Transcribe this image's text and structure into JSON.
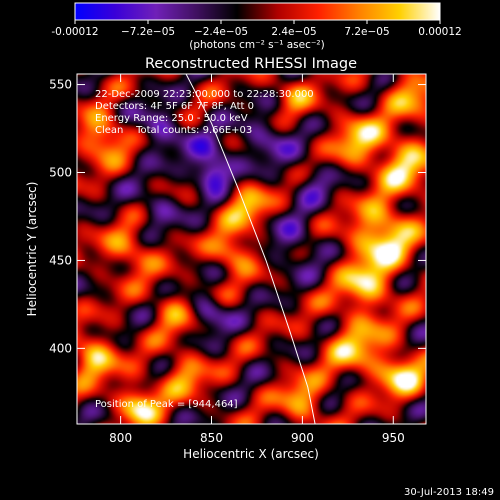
{
  "chart_data": {
    "type": "heatmap",
    "title": "Reconstructed RHESSI Image",
    "xlabel": "Heliocentric X (arcsec)",
    "ylabel": "Heliocentric Y (arcsec)",
    "xlim": [
      776,
      968
    ],
    "ylim": [
      357,
      556
    ],
    "x_ticks": [
      800,
      850,
      900,
      950
    ],
    "y_ticks": [
      400,
      450,
      500,
      550
    ],
    "colorbar": {
      "range": [
        -0.00012,
        0.00012
      ],
      "ticks": [
        {
          "value": -0.00012,
          "label": "-0.00012"
        },
        {
          "value": -7.2e-05,
          "label": "−7.2e−05"
        },
        {
          "value": -2.4e-05,
          "label": "−2.4e−05"
        },
        {
          "value": 2.4e-05,
          "label": "2.4e−05"
        },
        {
          "value": 7.2e-05,
          "label": "7.2e−05"
        },
        {
          "value": 0.00012,
          "label": "0.00012"
        }
      ],
      "units_label": "(photons cm⁻² s⁻¹ asec⁻²)",
      "colormap": [
        "#0000ff",
        "#3a00d8",
        "#7020b8",
        "#401060",
        "#000000",
        "#b00000",
        "#ff2000",
        "#ff8000",
        "#ffd000",
        "#ffffff"
      ]
    },
    "annotations": [
      "22-Dec-2009 22:23:00.000 to 22:28:30.000",
      "Detectors: 4F 5F 6F 7F 8F, Att 0",
      "Energy Range: 25.0 - 50.0 keV",
      "Clean    Total counts: 9.66E+03"
    ],
    "peak_label": "Position of Peak = [944,464]",
    "peak": [
      944,
      464
    ],
    "limb_curve": [
      [
        836,
        556
      ],
      [
        850,
        528
      ],
      [
        865,
        490
      ],
      [
        880,
        450
      ],
      [
        893,
        410
      ],
      [
        903,
        378
      ],
      [
        907,
        357
      ]
    ],
    "sources": [
      {
        "x": 944,
        "y": 464,
        "amp": 0.00012,
        "sigma": 12
      },
      {
        "x": 955,
        "y": 505,
        "amp": 9e-05,
        "sigma": 12
      },
      {
        "x": 930,
        "y": 520,
        "amp": 8e-05,
        "sigma": 10
      },
      {
        "x": 935,
        "y": 435,
        "amp": 9e-05,
        "sigma": 11
      },
      {
        "x": 930,
        "y": 400,
        "amp": 8e-05,
        "sigma": 12
      },
      {
        "x": 955,
        "y": 385,
        "amp": 0.0001,
        "sigma": 9
      },
      {
        "x": 960,
        "y": 545,
        "amp": 7e-05,
        "sigma": 10
      },
      {
        "x": 790,
        "y": 520,
        "amp": 0.0001,
        "sigma": 9
      },
      {
        "x": 785,
        "y": 395,
        "amp": 0.0001,
        "sigma": 9
      },
      {
        "x": 810,
        "y": 368,
        "amp": 0.00011,
        "sigma": 8
      },
      {
        "x": 805,
        "y": 455,
        "amp": 7e-05,
        "sigma": 10
      },
      {
        "x": 870,
        "y": 480,
        "amp": 8e-05,
        "sigma": 9
      },
      {
        "x": 862,
        "y": 455,
        "amp": 9e-05,
        "sigma": 8
      },
      {
        "x": 900,
        "y": 370,
        "amp": 8e-05,
        "sigma": 9
      },
      {
        "x": 830,
        "y": 420,
        "amp": 6e-05,
        "sigma": 9
      },
      {
        "x": 895,
        "y": 545,
        "amp": 6e-05,
        "sigma": 8
      },
      {
        "x": 835,
        "y": 385,
        "amp": 7e-05,
        "sigma": 9
      },
      {
        "x": 850,
        "y": 508,
        "amp": -7e-05,
        "sigma": 9
      },
      {
        "x": 850,
        "y": 498,
        "amp": -8e-05,
        "sigma": 6
      },
      {
        "x": 822,
        "y": 525,
        "amp": -7e-05,
        "sigma": 9
      },
      {
        "x": 848,
        "y": 420,
        "amp": -8e-05,
        "sigma": 7
      },
      {
        "x": 895,
        "y": 460,
        "amp": -6e-05,
        "sigma": 10
      },
      {
        "x": 880,
        "y": 520,
        "amp": -6e-05,
        "sigma": 10
      },
      {
        "x": 905,
        "y": 495,
        "amp": -5e-05,
        "sigma": 8
      },
      {
        "x": 820,
        "y": 480,
        "amp": -5e-05,
        "sigma": 9
      }
    ]
  },
  "footer": {
    "timestamp": "30-Jul-2013 18:49"
  }
}
